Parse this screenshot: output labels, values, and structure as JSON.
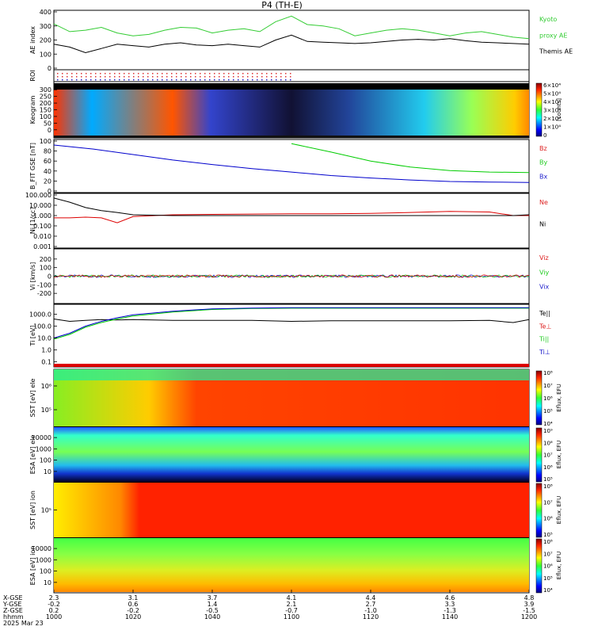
{
  "title": "P4 (TH-E)",
  "colors": {
    "red": "#dd0000",
    "green": "#00cc00",
    "blue": "#0000cc",
    "black": "#000000",
    "kyoto": "#33cc33",
    "bz": "#dd2222",
    "by": "#22cc22",
    "bx": "#2222cc"
  },
  "chart_data": [
    {
      "id": "ae",
      "type": "line",
      "ylabel": "AE index",
      "ylim": [
        0,
        400
      ],
      "yticks": [
        "0",
        "100",
        "200",
        "300",
        "400"
      ],
      "legend": [
        {
          "text": "Kyoto",
          "color": "#33cc33"
        },
        {
          "text": "proxy AE",
          "color": "#33cc33"
        },
        {
          "text": "Themis AE",
          "color": "#000000"
        }
      ],
      "x": [
        1000,
        1004,
        1008,
        1012,
        1016,
        1020,
        1024,
        1028,
        1032,
        1036,
        1040,
        1044,
        1048,
        1052,
        1056,
        1100,
        1104,
        1108,
        1112,
        1116,
        1120,
        1124,
        1128,
        1132,
        1136,
        1140,
        1144,
        1148,
        1152,
        1156,
        1200
      ],
      "series": [
        {
          "name": "Kyoto proxy AE",
          "color": "#33cc33",
          "values": [
            315,
            260,
            270,
            290,
            250,
            230,
            240,
            270,
            290,
            285,
            250,
            270,
            280,
            260,
            330,
            370,
            310,
            300,
            280,
            230,
            250,
            270,
            280,
            270,
            250,
            230,
            250,
            260,
            240,
            220,
            210
          ]
        },
        {
          "name": "Themis AE",
          "color": "#000000",
          "values": [
            170,
            150,
            110,
            140,
            170,
            160,
            150,
            170,
            180,
            165,
            160,
            170,
            160,
            150,
            200,
            235,
            190,
            185,
            180,
            175,
            180,
            190,
            200,
            205,
            200,
            210,
            195,
            185,
            180,
            175,
            170
          ]
        }
      ]
    },
    {
      "id": "roi",
      "type": "scatter",
      "ylabel": "ROI",
      "rows": 3
    },
    {
      "id": "keogram",
      "type": "heatmap",
      "ylabel": "Keogram",
      "ylim": [
        0,
        300
      ],
      "yticks": [
        "0",
        "50",
        "100",
        "150",
        "200",
        "250",
        "300"
      ],
      "colorbar": {
        "label": "[counts]",
        "ticks": [
          "0",
          "1×10⁴",
          "2×10⁴",
          "3×10⁴",
          "4×10⁴",
          "5×10⁴",
          "6×10⁴"
        ]
      }
    },
    {
      "id": "bfield",
      "type": "line",
      "ylabel": "B_FIT GSE [nT]",
      "ylim": [
        0,
        100
      ],
      "yticks": [
        "0",
        "20",
        "40",
        "60",
        "80",
        "100"
      ],
      "legend": [
        {
          "text": "Bz",
          "color": "#dd2222"
        },
        {
          "text": "By",
          "color": "#22cc22"
        },
        {
          "text": "Bx",
          "color": "#2222cc"
        }
      ],
      "x": [
        1000,
        1010,
        1020,
        1030,
        1040,
        1050,
        1100,
        1110,
        1120,
        1130,
        1140,
        1150,
        1200
      ],
      "series": [
        {
          "name": "Bx",
          "color": "#0000cc",
          "values": [
            92,
            84,
            73,
            62,
            53,
            45,
            38,
            31,
            26,
            22,
            19,
            18,
            17
          ]
        },
        {
          "name": "By",
          "color": "#00cc00",
          "values": [
            null,
            null,
            null,
            null,
            null,
            null,
            95,
            78,
            60,
            48,
            41,
            38,
            37
          ]
        },
        {
          "name": "Bz",
          "color": "#dd0000",
          "values": [
            null,
            null,
            null,
            null,
            null,
            null,
            null,
            null,
            null,
            null,
            null,
            null,
            null
          ]
        }
      ]
    },
    {
      "id": "density",
      "type": "line",
      "ylabel": "Ni [1/cc]",
      "scale": "log",
      "ylim": [
        0.001,
        100
      ],
      "yticks": [
        "0.001",
        "0.010",
        "0.100",
        "1.000",
        "10.000",
        "100.000"
      ],
      "legend": [
        {
          "text": "Ne",
          "color": "#dd2222"
        },
        {
          "text": "Ni",
          "color": "#000000"
        }
      ],
      "x": [
        1000,
        1004,
        1008,
        1012,
        1016,
        1020,
        1030,
        1040,
        1050,
        1100,
        1110,
        1120,
        1130,
        1140,
        1150,
        1156,
        1200
      ],
      "series": [
        {
          "name": "Ne",
          "color": "#dd0000",
          "values": [
            0.6,
            0.6,
            0.7,
            0.6,
            0.2,
            0.8,
            1.2,
            1.3,
            1.4,
            1.5,
            1.5,
            1.6,
            2.0,
            2.5,
            2.2,
            1.0,
            1.0
          ]
        },
        {
          "name": "Ni",
          "color": "#000000",
          "values": [
            50,
            20,
            6,
            3,
            2,
            1.2,
            1.0,
            1.0,
            1.0,
            1.0,
            1.0,
            1.0,
            1.0,
            1.0,
            1.0,
            1.0,
            1.2
          ]
        }
      ]
    },
    {
      "id": "velocity",
      "type": "line",
      "ylabel": "Vi [km/s]",
      "ylim": [
        -300,
        300
      ],
      "yticks": [
        "-200",
        "-100",
        "0",
        "100",
        "200"
      ],
      "legend": [
        {
          "text": "Viz",
          "color": "#dd2222"
        },
        {
          "text": "Viy",
          "color": "#22cc22"
        },
        {
          "text": "Vix",
          "color": "#2222cc"
        }
      ],
      "series": [
        {
          "name": "Vix",
          "color": "#0000cc",
          "mean": 0,
          "spread": 15
        },
        {
          "name": "Viy",
          "color": "#00cc00",
          "mean": 0,
          "spread": 15
        },
        {
          "name": "Viz",
          "color": "#dd0000",
          "mean": 0,
          "spread": 15
        }
      ]
    },
    {
      "id": "temperature",
      "type": "line",
      "ylabel": "Ti [eV]",
      "scale": "log",
      "ylim": [
        0.05,
        5000
      ],
      "yticks": [
        "0.1",
        "1.0",
        "10.0",
        "100.0",
        "1000.0"
      ],
      "legend": [
        {
          "text": "Te||",
          "color": "#000000"
        },
        {
          "text": "Te⊥",
          "color": "#dd2222"
        },
        {
          "text": "Ti||",
          "color": "#22cc22"
        },
        {
          "text": "Ti⊥",
          "color": "#2222cc"
        }
      ],
      "x": [
        1000,
        1004,
        1008,
        1012,
        1016,
        1020,
        1030,
        1040,
        1050,
        1100,
        1110,
        1120,
        1130,
        1140,
        1150,
        1156,
        1200
      ],
      "series": [
        {
          "name": "Te||",
          "color": "#000000",
          "values": [
            400,
            250,
            300,
            350,
            330,
            350,
            300,
            300,
            300,
            250,
            280,
            280,
            280,
            280,
            300,
            200,
            350
          ]
        },
        {
          "name": "Ti||",
          "color": "#00cc00",
          "values": [
            8,
            20,
            80,
            200,
            400,
            700,
            1500,
            2500,
            3000,
            3200,
            3200,
            3200,
            3200,
            3200,
            3200,
            3200,
            3200
          ]
        },
        {
          "name": "Ti⊥",
          "color": "#0000cc",
          "values": [
            10,
            25,
            100,
            250,
            500,
            900,
            1800,
            2800,
            3300,
            3500,
            3500,
            3500,
            3500,
            3500,
            3500,
            3500,
            3500
          ]
        }
      ]
    },
    {
      "id": "sst_e",
      "type": "heatmap",
      "ylabel": "SST [eV] ele",
      "yticks": [
        "10⁵",
        "10⁶"
      ],
      "colorbar": {
        "label": "Eflux, EFU",
        "ticks": [
          "10⁴",
          "10⁵",
          "10⁶",
          "10⁷",
          "10⁸"
        ]
      }
    },
    {
      "id": "esa_e",
      "type": "heatmap",
      "ylabel": "ESA [eV] ele",
      "yticks": [
        "10",
        "100",
        "1000",
        "10000"
      ],
      "colorbar": {
        "label": "Eflux, EFU",
        "ticks": [
          "10⁵",
          "10⁶",
          "10⁷",
          "10⁸",
          "10⁹"
        ]
      }
    },
    {
      "id": "sst_i",
      "type": "heatmap",
      "ylabel": "SST [eV] ion",
      "yticks": [
        "10⁵"
      ],
      "colorbar": {
        "label": "Eflux, EFU",
        "ticks": [
          "10⁵",
          "10⁶",
          "10⁷",
          "10⁸"
        ]
      }
    },
    {
      "id": "esa_i",
      "type": "heatmap",
      "ylabel": "ESA [eV] ion",
      "yticks": [
        "10",
        "100",
        "1000",
        "10000"
      ],
      "colorbar": {
        "label": "Eflux, EFU",
        "ticks": [
          "10⁴",
          "10⁵",
          "10⁶",
          "10⁷",
          "10⁸"
        ]
      }
    }
  ],
  "axis": {
    "row_labels": [
      "X-GSE",
      "Y-GSE",
      "Z-GSE",
      "hhmm",
      "2025 Mar 23"
    ],
    "ticks": [
      {
        "x": "2.3",
        "y": "-0.2",
        "z": "0.2",
        "t": "1000"
      },
      {
        "x": "3.1",
        "y": "0.6",
        "z": "-0.2",
        "t": "1020"
      },
      {
        "x": "3.7",
        "y": "1.4",
        "z": "-0.5",
        "t": "1040"
      },
      {
        "x": "4.1",
        "y": "2.1",
        "z": "-0.7",
        "t": "1100"
      },
      {
        "x": "4.4",
        "y": "2.7",
        "z": "-1.0",
        "t": "1120"
      },
      {
        "x": "4.6",
        "y": "3.3",
        "z": "-1.3",
        "t": "1140"
      },
      {
        "x": "4.8",
        "y": "3.9",
        "z": "-1.5",
        "t": "1200"
      }
    ]
  }
}
